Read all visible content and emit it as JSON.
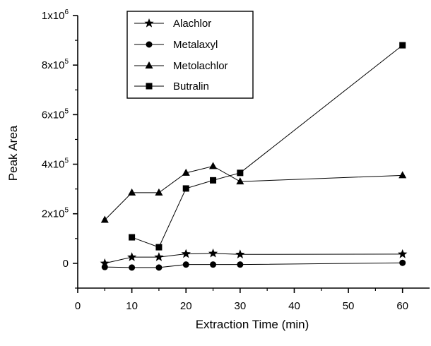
{
  "chart_data": {
    "type": "line",
    "xlabel": "Extraction Time (min)",
    "ylabel": "Peak Area",
    "xlim": [
      0,
      65
    ],
    "ylim": [
      -100000,
      1000000
    ],
    "x_ticks": [
      0,
      10,
      20,
      30,
      40,
      50,
      60
    ],
    "y_ticks": [
      {
        "value": 0,
        "base": "0",
        "exp": ""
      },
      {
        "value": 200000,
        "base": "2x10",
        "exp": "5"
      },
      {
        "value": 400000,
        "base": "4x10",
        "exp": "5"
      },
      {
        "value": 600000,
        "base": "6x10",
        "exp": "5"
      },
      {
        "value": 800000,
        "base": "8x10",
        "exp": "5"
      },
      {
        "value": 1000000,
        "base": "1x10",
        "exp": "6"
      }
    ],
    "legend_position": "top-left",
    "series": [
      {
        "name": "Alachlor",
        "marker": "star",
        "x": [
          5,
          10,
          15,
          20,
          25,
          30,
          60
        ],
        "y": [
          0,
          25000,
          25000,
          38000,
          40000,
          36000,
          37000
        ]
      },
      {
        "name": "Metalaxyl",
        "marker": "circle",
        "x": [
          5,
          10,
          15,
          20,
          25,
          30,
          60
        ],
        "y": [
          -15000,
          -17000,
          -17000,
          -5000,
          -5000,
          -5000,
          2000
        ]
      },
      {
        "name": "Metolachlor",
        "marker": "triangle",
        "x": [
          5,
          10,
          15,
          20,
          25,
          30,
          60
        ],
        "y": [
          175000,
          285000,
          285000,
          365000,
          392000,
          330000,
          355000
        ]
      },
      {
        "name": "Butralin",
        "marker": "square",
        "x": [
          10,
          15,
          20,
          25,
          30,
          60
        ],
        "y": [
          105000,
          65000,
          302000,
          335000,
          365000,
          880000
        ]
      }
    ]
  }
}
